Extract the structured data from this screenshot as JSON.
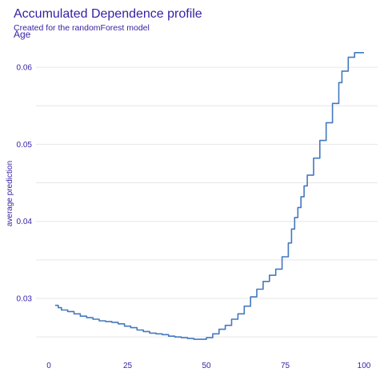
{
  "chart_data": {
    "type": "line",
    "title": "Accumulated Dependence profile",
    "subtitle": "Created for the randomForest model",
    "facet_label": "Age",
    "xlabel": "",
    "ylabel": "average prediction",
    "xlim": [
      0,
      100
    ],
    "ylim": [
      0.0245,
      0.0625
    ],
    "x_ticks": [
      0,
      25,
      50,
      75,
      100
    ],
    "y_ticks": [
      0.03,
      0.04,
      0.05,
      0.06
    ],
    "y_tick_labels": [
      "0.03",
      "0.04",
      "0.05",
      "0.06"
    ],
    "grid": true,
    "line_color": "#4378bf",
    "text_color": "#371ea3",
    "series": [
      {
        "x": [
          2,
          3,
          4,
          6,
          8,
          10,
          12,
          14,
          16,
          18,
          20,
          22,
          24,
          26,
          28,
          30,
          32,
          34,
          36,
          38,
          40,
          42,
          44,
          46,
          48,
          50,
          52,
          54,
          56,
          58,
          60,
          62,
          64,
          66,
          68,
          70,
          72,
          74,
          76,
          77,
          78,
          79,
          80,
          81,
          82,
          84,
          86,
          88,
          90,
          92,
          93,
          95,
          97,
          100
        ],
        "y": [
          0.0291,
          0.0288,
          0.0285,
          0.0283,
          0.028,
          0.0277,
          0.0275,
          0.0273,
          0.0271,
          0.027,
          0.0269,
          0.0267,
          0.0264,
          0.0262,
          0.0259,
          0.0257,
          0.0255,
          0.0254,
          0.0253,
          0.0251,
          0.025,
          0.0249,
          0.0248,
          0.0247,
          0.0247,
          0.0249,
          0.0254,
          0.026,
          0.0265,
          0.0273,
          0.028,
          0.029,
          0.0302,
          0.0312,
          0.0322,
          0.033,
          0.0338,
          0.0354,
          0.0372,
          0.039,
          0.0405,
          0.0418,
          0.0432,
          0.0446,
          0.046,
          0.0482,
          0.0505,
          0.0528,
          0.0553,
          0.058,
          0.0595,
          0.0613,
          0.0619,
          0.0619
        ]
      }
    ]
  }
}
